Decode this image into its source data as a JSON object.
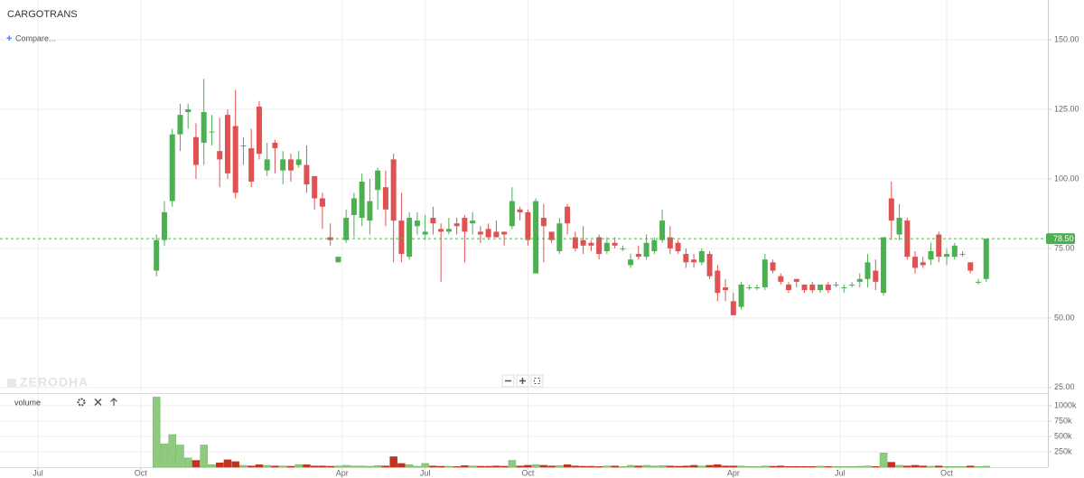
{
  "header": {
    "symbol": "CARGOTRANS",
    "compare": "Compare..."
  },
  "watermark": "ZERODHA",
  "chart_data": [
    {
      "type": "candlestick",
      "up_color": "#4caf50",
      "down_color": "#e05252",
      "xlim": [
        -4.8,
        127.8
      ],
      "xticks": [
        {
          "value": 0,
          "label": "Jul"
        },
        {
          "value": 13,
          "label": "Oct"
        },
        {
          "value": 38.5,
          "label": "Apr"
        },
        {
          "value": 49,
          "label": "Jul"
        },
        {
          "value": 62,
          "label": "Oct"
        },
        {
          "value": 88,
          "label": "Apr"
        },
        {
          "value": 101.5,
          "label": "Jul"
        },
        {
          "value": 115,
          "label": "Oct"
        }
      ],
      "ylim": [
        23,
        164.3
      ],
      "yticks": [
        {
          "value": 25,
          "label": "25.00"
        },
        {
          "value": 50,
          "label": "50.00"
        },
        {
          "value": 75,
          "label": "75.00"
        },
        {
          "value": 100,
          "label": "100.00"
        },
        {
          "value": 125,
          "label": "125.00"
        },
        {
          "value": 150,
          "label": "150.00"
        }
      ],
      "grid": true,
      "last_price": {
        "value": 78.5,
        "label": "78.50"
      },
      "last_price_color": "#4caf50",
      "x": [
        15,
        16,
        17,
        18,
        19,
        20,
        21,
        22,
        23,
        24,
        25,
        26,
        27,
        28,
        29,
        30,
        31,
        32,
        33,
        34,
        35,
        36,
        37,
        38,
        39,
        40,
        41,
        42,
        43,
        44,
        45,
        46,
        47,
        48,
        49,
        50,
        51,
        52,
        53,
        54,
        55,
        56,
        57,
        58,
        59,
        60,
        61,
        62,
        63,
        64,
        65,
        66,
        67,
        68,
        69,
        70,
        71,
        72,
        73,
        74,
        75,
        76,
        77,
        78,
        79,
        80,
        81,
        82,
        83,
        84,
        85,
        86,
        87,
        88,
        89,
        90,
        91,
        92,
        93,
        94,
        95,
        96,
        97,
        98,
        99,
        100,
        101,
        102,
        103,
        104,
        105,
        106,
        107,
        108,
        109,
        110,
        111,
        112,
        113,
        114,
        115,
        116,
        117,
        118,
        119,
        120
      ],
      "open": [
        67,
        78,
        92,
        116,
        124,
        115,
        113,
        117,
        110,
        123,
        119,
        112,
        111,
        126,
        103,
        113,
        103,
        107,
        105,
        105,
        101,
        93,
        79,
        70,
        78,
        87,
        86,
        85,
        96,
        97,
        107,
        85,
        72,
        83,
        80,
        86,
        82,
        81,
        84,
        86,
        84,
        81,
        82,
        81,
        81,
        83,
        89,
        88,
        66,
        86,
        81,
        74,
        90,
        79,
        78,
        77,
        79,
        74,
        77,
        75,
        69,
        73,
        72,
        74,
        78,
        79,
        77,
        73,
        71,
        70,
        73,
        67,
        61,
        56,
        54,
        61,
        61,
        61,
        70,
        65,
        62,
        64,
        62,
        62,
        60,
        62,
        62,
        61,
        62,
        63,
        64,
        67,
        59,
        93,
        80,
        85,
        72,
        70,
        71,
        80,
        72,
        72,
        73,
        70,
        63,
        64
      ],
      "high": [
        80,
        92,
        118,
        127,
        127,
        120,
        136,
        123,
        122,
        125,
        132,
        115,
        118,
        128,
        113,
        114,
        110,
        109,
        110,
        112,
        101,
        95,
        84,
        72,
        89,
        95,
        102,
        100,
        104,
        103,
        109,
        95,
        88,
        88,
        87,
        90,
        84,
        86,
        86,
        87,
        88,
        83,
        84,
        85,
        81,
        97,
        90,
        89,
        93,
        91,
        81,
        86,
        91,
        81,
        83,
        78,
        80,
        79,
        79,
        76,
        73,
        76,
        80,
        79,
        89,
        83,
        78,
        75,
        73,
        75,
        74,
        69,
        64,
        59,
        63,
        62,
        62,
        73,
        71,
        66,
        63,
        64,
        62,
        63,
        62,
        63,
        63,
        62,
        63,
        66,
        73,
        71,
        79,
        99,
        91,
        86,
        74,
        72,
        77,
        81,
        75,
        77,
        74,
        70,
        64,
        78.5
      ],
      "low": [
        65,
        76,
        90,
        110,
        118,
        100,
        105,
        112,
        97,
        100,
        93,
        105,
        97,
        107,
        101,
        102,
        98,
        99,
        104,
        95,
        89,
        82,
        76,
        70,
        77,
        79,
        83,
        80,
        89,
        83,
        70,
        70,
        71,
        80,
        78,
        80,
        63,
        80,
        80,
        70,
        80,
        77,
        78,
        79,
        76,
        82,
        85,
        76,
        66,
        70,
        77,
        73,
        80,
        74,
        73,
        74,
        71,
        73,
        75,
        74,
        68,
        71,
        71,
        73,
        77,
        73,
        73,
        68,
        68,
        69,
        64,
        56,
        56,
        51,
        53,
        60,
        60,
        60,
        66,
        62,
        59,
        61,
        59,
        59,
        59,
        59,
        61,
        59,
        61,
        61,
        61,
        60,
        58,
        78,
        78,
        71,
        66,
        68,
        69,
        70,
        69,
        71,
        72,
        66,
        62,
        63
      ],
      "close": [
        78,
        88,
        116,
        123,
        125,
        105,
        124,
        117,
        107,
        102,
        95,
        112,
        99,
        109,
        107,
        111,
        107,
        103,
        107,
        98,
        93,
        90,
        78,
        72,
        86,
        93,
        99,
        92,
        103,
        89,
        85,
        73,
        86,
        85,
        81,
        84,
        81,
        82,
        83,
        81,
        85,
        80,
        79,
        79,
        80,
        92,
        88,
        78,
        92,
        83,
        78,
        84,
        84,
        75,
        76,
        76,
        73,
        77,
        76,
        75,
        71,
        72,
        77,
        78,
        85,
        75,
        74,
        70,
        70,
        74,
        65,
        59,
        60,
        51,
        62,
        61,
        61,
        71,
        67,
        63,
        60,
        63,
        60,
        60,
        62,
        60,
        62,
        61,
        62,
        64,
        70,
        63,
        79,
        85,
        86,
        72,
        68,
        69,
        74,
        72,
        73,
        76,
        73,
        67,
        63,
        78.5
      ]
    },
    {
      "type": "bar",
      "title": "volume",
      "up_color": "#8fcb7f",
      "down_color": "#c0341f",
      "ylim": [
        0,
        1176000
      ],
      "yticks": [
        {
          "value": 250000,
          "label": "250k"
        },
        {
          "value": 500000,
          "label": "500k"
        },
        {
          "value": 750000,
          "label": "750k"
        },
        {
          "value": 1000000,
          "label": "1000k"
        }
      ],
      "values": [
        1140000,
        380000,
        530000,
        360000,
        150000,
        110000,
        360000,
        40000,
        70000,
        120000,
        90000,
        30000,
        20000,
        40000,
        30000,
        20000,
        20000,
        15000,
        40000,
        40000,
        20000,
        20000,
        15000,
        20000,
        30000,
        20000,
        20000,
        15000,
        25000,
        20000,
        170000,
        60000,
        40000,
        15000,
        60000,
        20000,
        15000,
        15000,
        10000,
        25000,
        20000,
        15000,
        15000,
        20000,
        15000,
        110000,
        20000,
        30000,
        40000,
        30000,
        20000,
        25000,
        40000,
        20000,
        15000,
        15000,
        10000,
        20000,
        20000,
        10000,
        30000,
        20000,
        30000,
        20000,
        25000,
        20000,
        15000,
        20000,
        30000,
        20000,
        30000,
        40000,
        20000,
        20000,
        20000,
        10000,
        10000,
        20000,
        15000,
        20000,
        10000,
        10000,
        10000,
        10000,
        15000,
        10000,
        10000,
        10000,
        10000,
        15000,
        20000,
        10000,
        230000,
        80000,
        30000,
        20000,
        30000,
        20000,
        15000,
        20000,
        10000,
        10000,
        10000,
        20000,
        10000,
        15000
      ]
    }
  ]
}
